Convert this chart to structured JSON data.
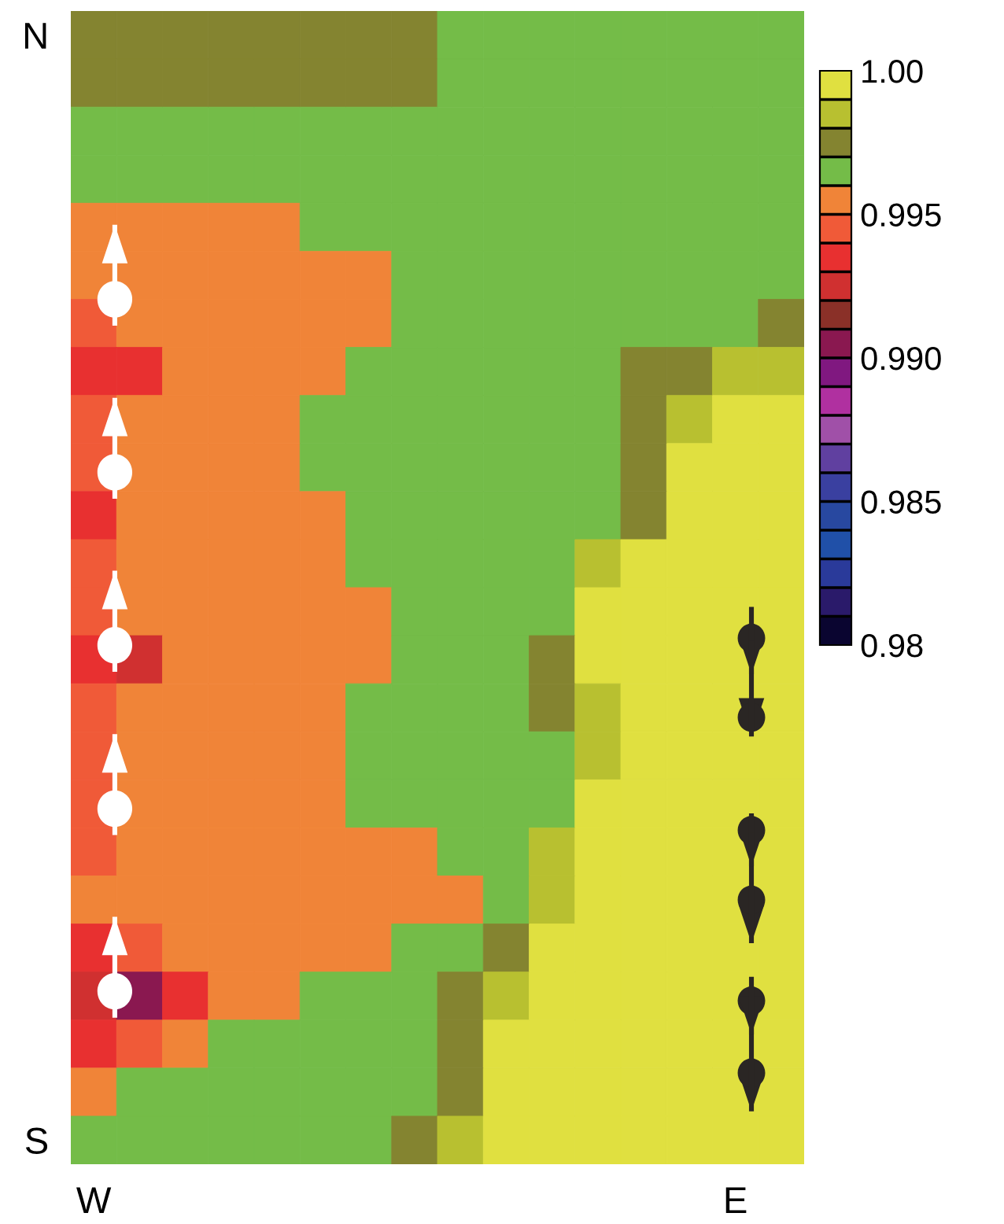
{
  "chart_data": {
    "type": "heatmap",
    "categories": [
      "W",
      null,
      null,
      null,
      null,
      null,
      null,
      null,
      null,
      null,
      null,
      null,
      null,
      null,
      "E",
      null
    ],
    "y_categories": [
      "N",
      null,
      null,
      null,
      null,
      null,
      null,
      null,
      null,
      null,
      null,
      null,
      null,
      null,
      null,
      null,
      null,
      null,
      null,
      null,
      null,
      null,
      null,
      "S"
    ],
    "clim": [
      0.98,
      1.0
    ],
    "cticks": [
      0.98,
      0.985,
      {
        "value": 0.99,
        "label": "0.990"
      },
      0.995,
      {
        "value": 1.0,
        "label": "1.00"
      }
    ],
    "colors": [
      "#0a0530",
      "#2a1a6a",
      "#2a3a9a",
      "#2050a8",
      "#2848a0",
      "#3a40a0",
      "#6040a0",
      "#a050a8",
      "#b030a0",
      "#801880",
      "#8a1850",
      "#8a3028",
      "#d03030",
      "#e83030",
      "#f05a38",
      "#f08438",
      "#74bc48",
      "#848430",
      "#b8c030",
      "#e0e040"
    ],
    "cells": [
      [
        0.9975,
        0.9975,
        0.9975,
        0.9975,
        0.9975,
        0.9975,
        0.9975,
        0.9975,
        0.9965,
        0.9965,
        0.9965,
        0.9965,
        0.9965,
        0.9965,
        0.9965,
        0.9965
      ],
      [
        0.9975,
        0.9975,
        0.9975,
        0.9975,
        0.9975,
        0.9975,
        0.9975,
        0.9975,
        0.9965,
        0.9965,
        0.9965,
        0.9965,
        0.9965,
        0.9965,
        0.9965,
        0.9965
      ],
      [
        0.9965,
        0.9965,
        0.9965,
        0.9965,
        0.9965,
        0.9965,
        0.9965,
        0.9965,
        0.9965,
        0.9965,
        0.9965,
        0.9965,
        0.9965,
        0.9965,
        0.9965,
        0.9965
      ],
      [
        0.9965,
        0.9965,
        0.9965,
        0.9965,
        0.9965,
        0.9965,
        0.9965,
        0.9965,
        0.9965,
        0.9965,
        0.9965,
        0.9965,
        0.9965,
        0.9965,
        0.9965,
        0.9965
      ],
      [
        0.9955,
        0.9955,
        0.9955,
        0.9955,
        0.9955,
        0.9965,
        0.9965,
        0.9965,
        0.9965,
        0.9965,
        0.9965,
        0.9965,
        0.9965,
        0.9965,
        0.9965,
        0.9965
      ],
      [
        0.9955,
        0.9955,
        0.9955,
        0.9955,
        0.9955,
        0.9955,
        0.9955,
        0.9965,
        0.9965,
        0.9965,
        0.9965,
        0.9965,
        0.9965,
        0.9965,
        0.9965,
        0.9965
      ],
      [
        0.9945,
        0.9955,
        0.9955,
        0.9955,
        0.9955,
        0.9955,
        0.9955,
        0.9965,
        0.9965,
        0.9965,
        0.9965,
        0.9965,
        0.9965,
        0.9965,
        0.9965,
        0.9975
      ],
      [
        0.9935,
        0.9935,
        0.9955,
        0.9955,
        0.9955,
        0.9955,
        0.9965,
        0.9965,
        0.9965,
        0.9965,
        0.9965,
        0.9965,
        0.9975,
        0.9975,
        0.9985,
        0.9985
      ],
      [
        0.9945,
        0.9955,
        0.9955,
        0.9955,
        0.9955,
        0.9965,
        0.9965,
        0.9965,
        0.9965,
        0.9965,
        0.9965,
        0.9965,
        0.9975,
        0.9985,
        0.9995,
        0.9995
      ],
      [
        0.9945,
        0.9955,
        0.9955,
        0.9955,
        0.9955,
        0.9965,
        0.9965,
        0.9965,
        0.9965,
        0.9965,
        0.9965,
        0.9965,
        0.9975,
        0.9995,
        0.9995,
        0.9995
      ],
      [
        0.9935,
        0.9955,
        0.9955,
        0.9955,
        0.9955,
        0.9955,
        0.9965,
        0.9965,
        0.9965,
        0.9965,
        0.9965,
        0.9965,
        0.9975,
        0.9995,
        0.9995,
        0.9995
      ],
      [
        0.9945,
        0.9955,
        0.9955,
        0.9955,
        0.9955,
        0.9955,
        0.9965,
        0.9965,
        0.9965,
        0.9965,
        0.9965,
        0.9985,
        0.9995,
        0.9995,
        0.9995,
        0.9995
      ],
      [
        0.9945,
        0.9955,
        0.9955,
        0.9955,
        0.9955,
        0.9955,
        0.9955,
        0.9965,
        0.9965,
        0.9965,
        0.9965,
        0.9995,
        0.9995,
        0.9995,
        0.9995,
        0.9995
      ],
      [
        0.9935,
        0.9925,
        0.9955,
        0.9955,
        0.9955,
        0.9955,
        0.9955,
        0.9965,
        0.9965,
        0.9965,
        0.9975,
        0.9995,
        0.9995,
        0.9995,
        0.9995,
        0.9995
      ],
      [
        0.9945,
        0.9955,
        0.9955,
        0.9955,
        0.9955,
        0.9955,
        0.9965,
        0.9965,
        0.9965,
        0.9965,
        0.9975,
        0.9985,
        0.9995,
        0.9995,
        0.9995,
        0.9995
      ],
      [
        0.9945,
        0.9955,
        0.9955,
        0.9955,
        0.9955,
        0.9955,
        0.9965,
        0.9965,
        0.9965,
        0.9965,
        0.9965,
        0.9985,
        0.9995,
        0.9995,
        0.9995,
        0.9995
      ],
      [
        0.9945,
        0.9955,
        0.9955,
        0.9955,
        0.9955,
        0.9955,
        0.9965,
        0.9965,
        0.9965,
        0.9965,
        0.9965,
        0.9995,
        0.9995,
        0.9995,
        0.9995,
        0.9995
      ],
      [
        0.9945,
        0.9955,
        0.9955,
        0.9955,
        0.9955,
        0.9955,
        0.9955,
        0.9955,
        0.9965,
        0.9965,
        0.9985,
        0.9995,
        0.9995,
        0.9995,
        0.9995,
        0.9995
      ],
      [
        0.9955,
        0.9955,
        0.9955,
        0.9955,
        0.9955,
        0.9955,
        0.9955,
        0.9955,
        0.9955,
        0.9965,
        0.9985,
        0.9995,
        0.9995,
        0.9995,
        0.9995,
        0.9995
      ],
      [
        0.9935,
        0.9945,
        0.9955,
        0.9955,
        0.9955,
        0.9955,
        0.9955,
        0.9965,
        0.9965,
        0.9975,
        0.9995,
        0.9995,
        0.9995,
        0.9995,
        0.9995,
        0.9995
      ],
      [
        0.9925,
        0.9905,
        0.9935,
        0.9955,
        0.9955,
        0.9965,
        0.9965,
        0.9965,
        0.9975,
        0.9985,
        0.9995,
        0.9995,
        0.9995,
        0.9995,
        0.9995,
        0.9995
      ],
      [
        0.9935,
        0.9945,
        0.9955,
        0.9965,
        0.9965,
        0.9965,
        0.9965,
        0.9965,
        0.9975,
        0.9995,
        0.9995,
        0.9995,
        0.9995,
        0.9995,
        0.9995,
        0.9995
      ],
      [
        0.9955,
        0.9965,
        0.9965,
        0.9965,
        0.9965,
        0.9965,
        0.9965,
        0.9965,
        0.9975,
        0.9995,
        0.9995,
        0.9995,
        0.9995,
        0.9995,
        0.9995,
        0.9995
      ],
      [
        0.9965,
        0.9965,
        0.9965,
        0.9965,
        0.9965,
        0.9965,
        0.9965,
        0.9975,
        0.9985,
        0.9995,
        0.9995,
        0.9995,
        0.9995,
        0.9995,
        0.9995,
        0.9995
      ]
    ]
  }
}
